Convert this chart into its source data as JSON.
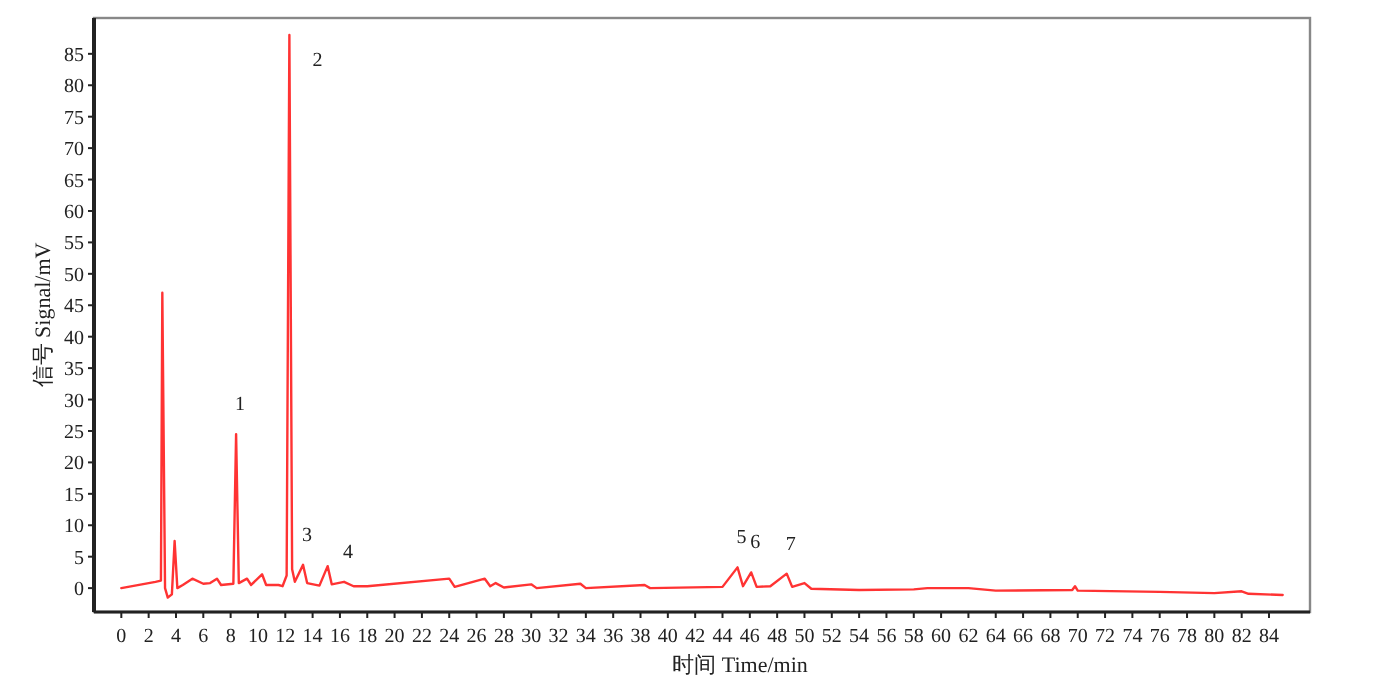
{
  "chart_data": {
    "type": "line",
    "xlabel": "时间 Time/min",
    "ylabel": "信号 Signal/mV",
    "xlim": [
      -2,
      87
    ],
    "ylim": [
      -3.8,
      90.7
    ],
    "xticks": [
      0,
      2,
      4,
      6,
      8,
      10,
      12,
      14,
      16,
      18,
      20,
      22,
      24,
      26,
      28,
      30,
      32,
      34,
      36,
      38,
      40,
      42,
      44,
      46,
      48,
      50,
      52,
      54,
      56,
      58,
      60,
      62,
      64,
      66,
      68,
      70,
      72,
      74,
      76,
      78,
      80,
      82,
      84
    ],
    "yticks": [
      0,
      5,
      10,
      15,
      20,
      25,
      30,
      35,
      40,
      45,
      50,
      55,
      60,
      65,
      70,
      75,
      80,
      85
    ],
    "grid": false,
    "marker": "none",
    "line_style": "solid",
    "series": [
      {
        "color": "#ff3333",
        "x": [
          0,
          2.5,
          2.9,
          3.0,
          3.2,
          3.4,
          3.7,
          3.9,
          4.1,
          4.5,
          5.2,
          6,
          6.5,
          7,
          7.3,
          8.2,
          8.4,
          8.6,
          9.2,
          9.5,
          10.3,
          10.6,
          11.5,
          11.8,
          12.1,
          12.3,
          12.5,
          12.7,
          13.3,
          13.6,
          14.5,
          15.1,
          15.4,
          16.3,
          17,
          18,
          24,
          24.4,
          26.6,
          27,
          27.4,
          28,
          30,
          30.4,
          33.6,
          34,
          38.3,
          38.7,
          44,
          45.1,
          45.5,
          46.1,
          46.5,
          47.5,
          48.7,
          49.1,
          50,
          50.5,
          54,
          58,
          59,
          62,
          64,
          69.6,
          69.8,
          70,
          76,
          80,
          82,
          82.5,
          85
        ],
        "values": [
          0,
          1,
          1.2,
          47,
          0,
          -1.5,
          -1,
          7.5,
          0,
          0.5,
          1.5,
          0.7,
          0.8,
          1.5,
          0.5,
          0.7,
          24.5,
          0.8,
          1.5,
          0.5,
          2.2,
          0.5,
          0.5,
          0.3,
          2,
          88,
          3,
          1,
          3.7,
          0.8,
          0.4,
          3.5,
          0.6,
          1,
          0.3,
          0.3,
          1.5,
          0.2,
          1.5,
          0.3,
          0.8,
          0.1,
          0.6,
          0,
          0.7,
          0,
          0.5,
          0,
          0.2,
          3.3,
          0.3,
          2.5,
          0.2,
          0.3,
          2.3,
          0.2,
          0.8,
          -0.1,
          -0.3,
          -0.2,
          0,
          0,
          -0.4,
          -0.3,
          0.3,
          -0.4,
          -0.6,
          -0.8,
          -0.5,
          -0.9,
          -1.1
        ]
      }
    ],
    "annotations": [
      {
        "text": "1",
        "x": 8.4,
        "y": 24.5
      },
      {
        "text": "2",
        "x": 12.3,
        "y": 88
      },
      {
        "text": "3",
        "x": 13.3,
        "y": 3.7
      },
      {
        "text": "4",
        "x": 16.3,
        "y": 1
      },
      {
        "text": "5",
        "x": 45.1,
        "y": 3.3
      },
      {
        "text": "6",
        "x": 46.1,
        "y": 2.5
      },
      {
        "text": "7",
        "x": 48.7,
        "y": 2.3
      }
    ]
  }
}
